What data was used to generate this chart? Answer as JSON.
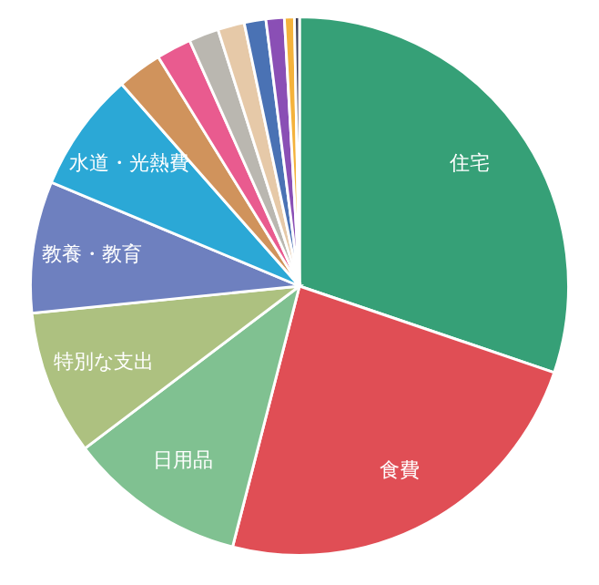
{
  "chart_data": {
    "type": "pie",
    "categories": [
      "住宅",
      "食費",
      "日用品",
      "特別な支出",
      "教養・教育",
      "水道・光熱費",
      null,
      null,
      null,
      null,
      null,
      null,
      null,
      null
    ],
    "values": [
      30.2,
      23.8,
      10.7,
      8.7,
      7.9,
      7.2,
      2.7,
      2.1,
      1.8,
      1.6,
      1.3,
      1.1,
      0.6,
      0.3
    ],
    "colors": [
      "#36a077",
      "#e04e55",
      "#80c191",
      "#adc180",
      "#6e80bf",
      "#2ba8d6",
      "#d0935c",
      "#e95b8f",
      "#bab7b0",
      "#e6c9a8",
      "#4a72b4",
      "#8a4fb5",
      "#f4b23c",
      "#3d3d56"
    ]
  }
}
